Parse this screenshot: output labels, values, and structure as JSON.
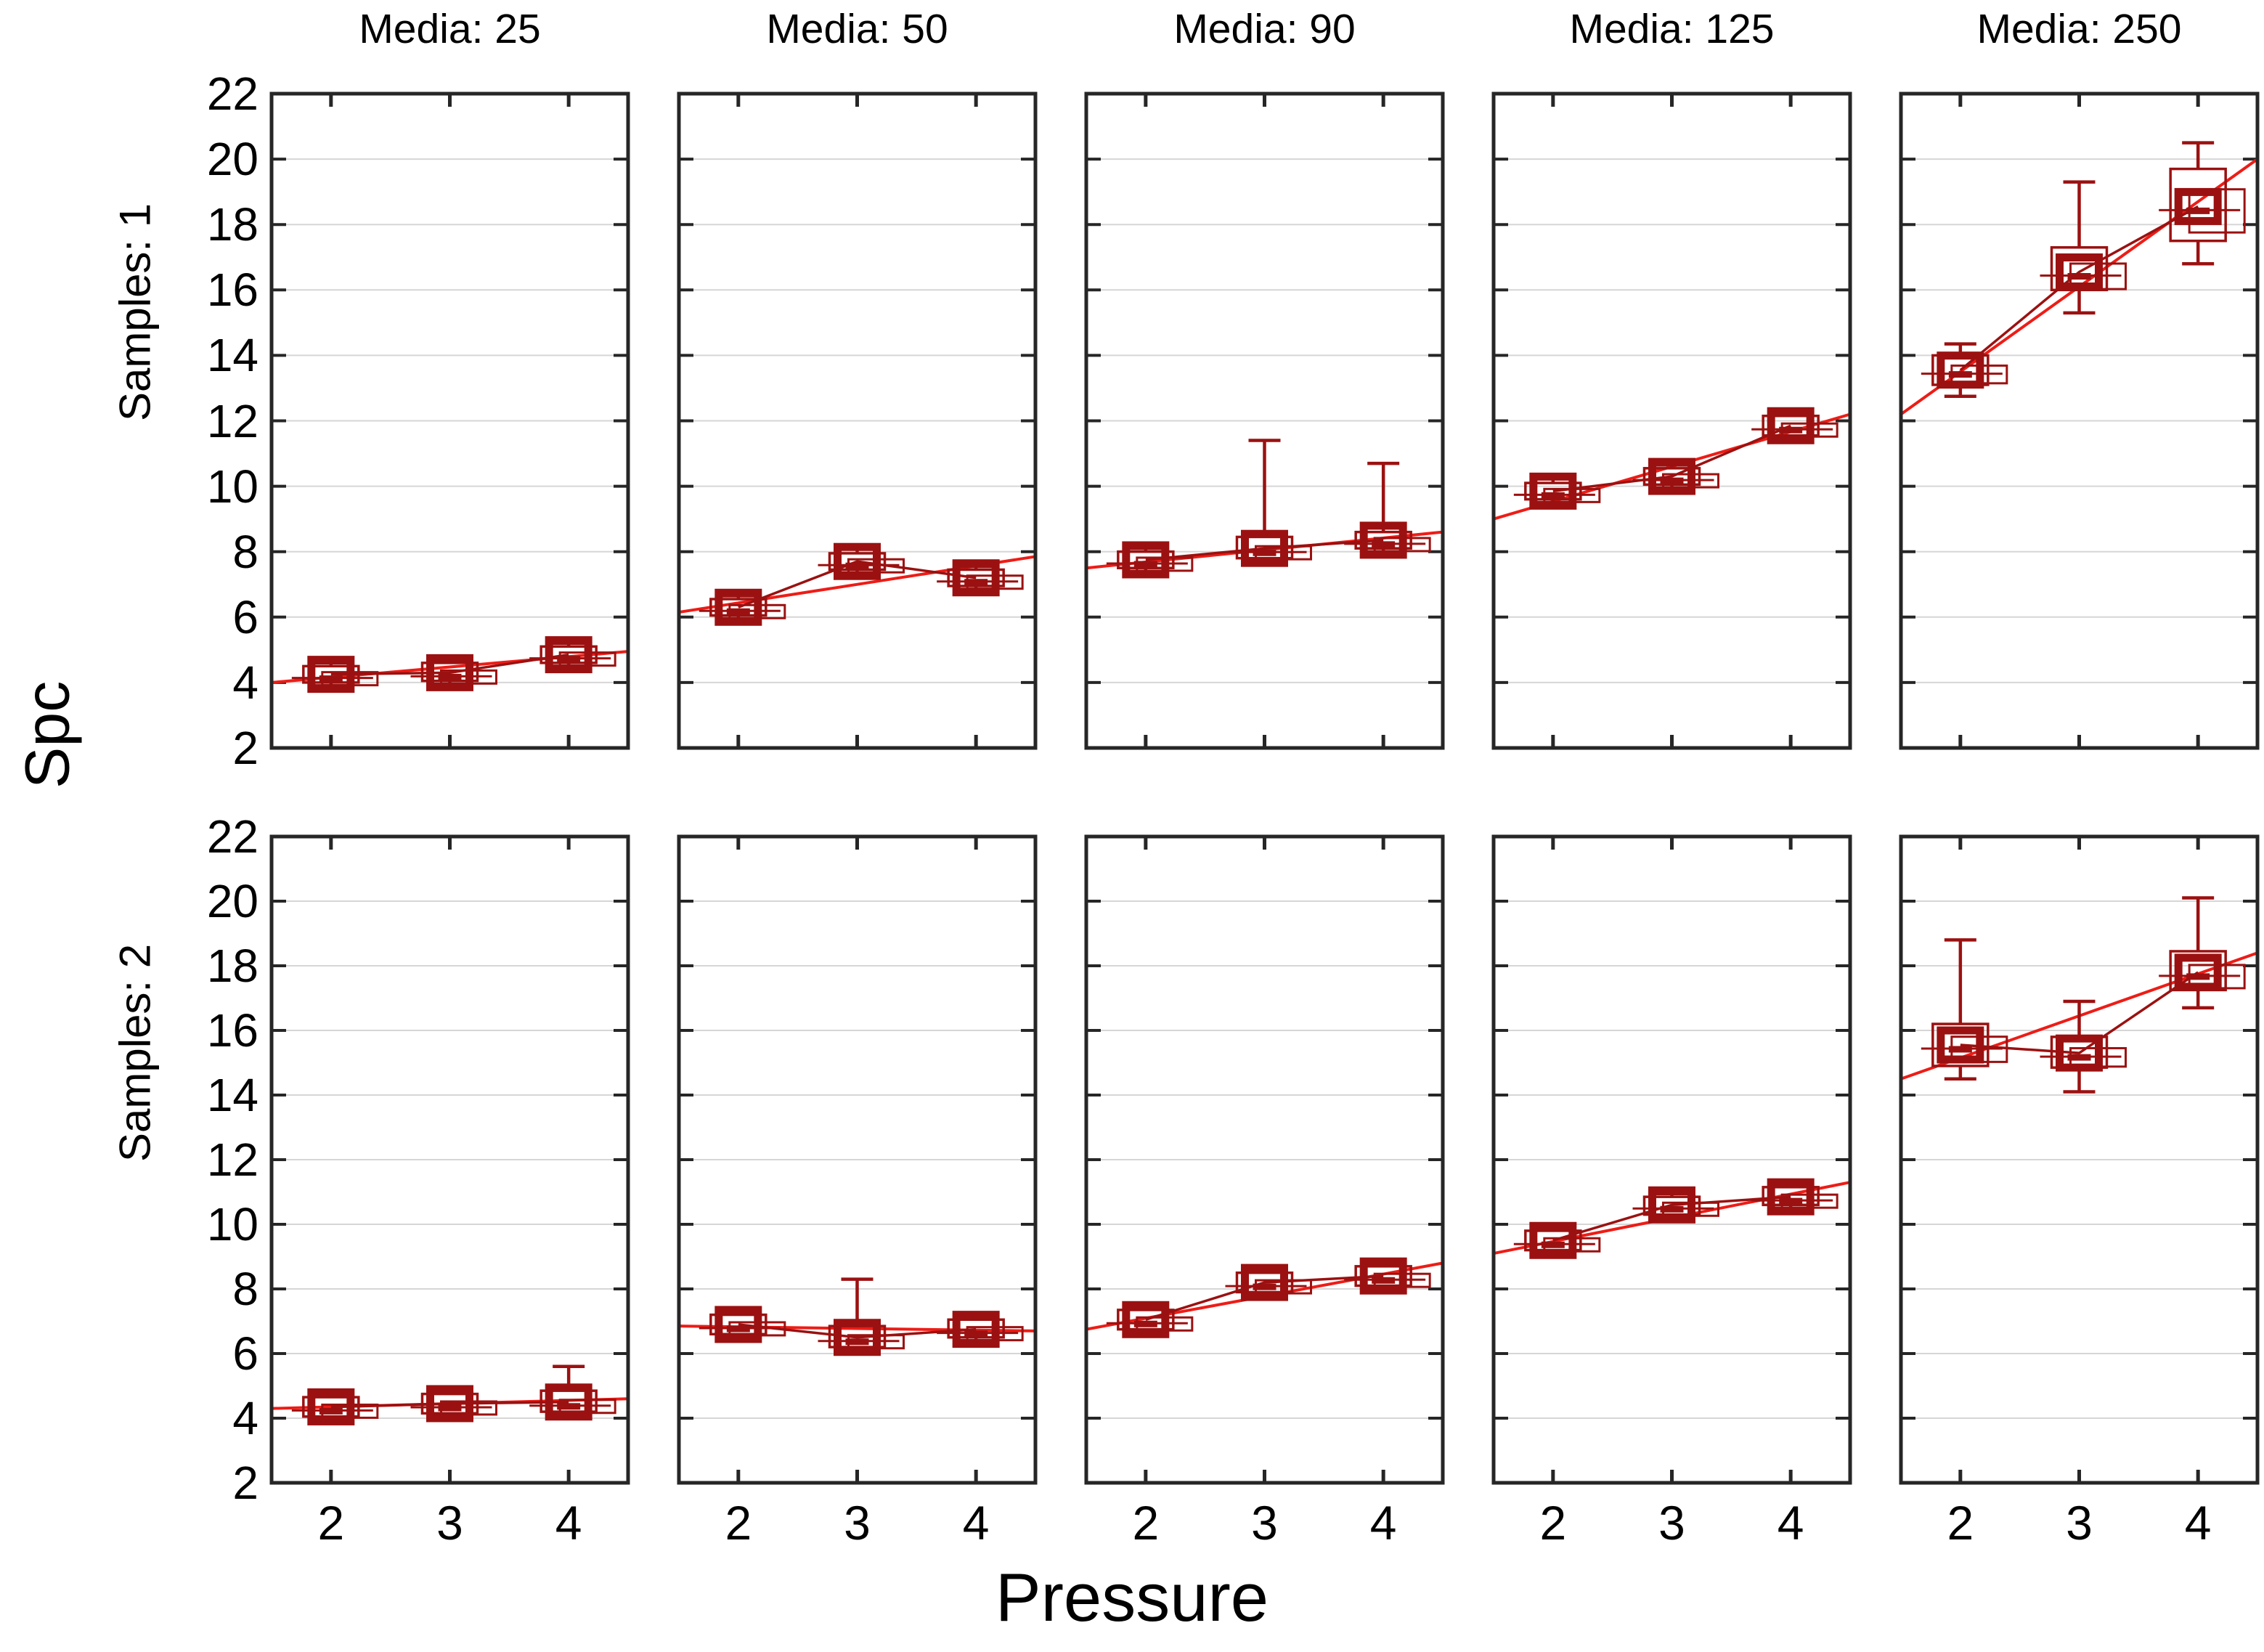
{
  "figure": {
    "title": "",
    "ylabel": "Spc",
    "xlabel": "Pressure",
    "row_label_1": "Samples: 1",
    "row_label_2": "Samples: 2",
    "col_title_1": "Media: 25",
    "col_title_2": "Media: 50",
    "col_title_3": "Media: 90",
    "col_title_4": "Media: 125",
    "col_title_5": "Media: 250"
  },
  "chart_data": {
    "type": "box",
    "layout": "trellis 2 rows (Samples) x 5 cols (Media), shared axes",
    "title": "",
    "xlabel": "Pressure",
    "ylabel": "Spc",
    "col_titles": [
      "Media: 25",
      "Media: 50",
      "Media: 90",
      "Media: 125",
      "Media: 250"
    ],
    "row_titles": [
      "Samples: 1",
      "Samples: 2"
    ],
    "x_ticks": [
      2,
      3,
      4
    ],
    "y_ticks": [
      22,
      20,
      18,
      16,
      14,
      12,
      10,
      8,
      6,
      4,
      2
    ],
    "xlim": [
      1.5,
      4.5
    ],
    "ylim": [
      2,
      22
    ],
    "grid": "horizontal only",
    "legend": "none",
    "colors": {
      "box": "#9b1111",
      "trend_line": "#ee1c16",
      "grid_line": "#d6d6d6",
      "frame": "#262626",
      "text": "#000000",
      "background": "#ffffff"
    },
    "panels": [
      {
        "row": "Samples: 1",
        "col": "Media: 25",
        "trend": [
          4.0,
          4.95
        ],
        "points": [
          {
            "x": 2,
            "mean": 4.25,
            "box": [
              4.0,
              4.5
            ],
            "whiskers": [
              3.9,
              4.6
            ]
          },
          {
            "x": 3,
            "mean": 4.3,
            "box": [
              4.05,
              4.6
            ],
            "whiskers": [
              3.95,
              4.65
            ]
          },
          {
            "x": 4,
            "mean": 4.85,
            "box": [
              4.6,
              5.1
            ],
            "whiskers": [
              4.5,
              5.2
            ]
          }
        ]
      },
      {
        "row": "Samples: 1",
        "col": "Media: 50",
        "trend": [
          6.15,
          7.85
        ],
        "points": [
          {
            "x": 2,
            "mean": 6.3,
            "box": [
              6.05,
              6.55
            ],
            "whiskers": [
              5.95,
              6.65
            ]
          },
          {
            "x": 3,
            "mean": 7.7,
            "box": [
              7.45,
              7.95
            ],
            "whiskers": [
              7.35,
              8.1
            ]
          },
          {
            "x": 4,
            "mean": 7.2,
            "box": [
              6.95,
              7.45
            ],
            "whiskers": [
              6.85,
              7.55
            ]
          }
        ]
      },
      {
        "row": "Samples: 1",
        "col": "Media: 90",
        "trend": [
          7.5,
          8.6
        ],
        "points": [
          {
            "x": 2,
            "mean": 7.75,
            "box": [
              7.5,
              8.0
            ],
            "whiskers": [
              7.4,
              8.1
            ]
          },
          {
            "x": 3,
            "mean": 8.1,
            "box": [
              7.8,
              8.45
            ],
            "whiskers": [
              7.7,
              11.4
            ]
          },
          {
            "x": 4,
            "mean": 8.35,
            "box": [
              8.1,
              8.6
            ],
            "whiskers": [
              8.0,
              10.7
            ]
          }
        ]
      },
      {
        "row": "Samples: 1",
        "col": "Media: 125",
        "trend": [
          9.0,
          12.2
        ],
        "points": [
          {
            "x": 2,
            "mean": 9.85,
            "box": [
              9.6,
              10.1
            ],
            "whiskers": [
              9.5,
              10.35
            ]
          },
          {
            "x": 3,
            "mean": 10.3,
            "box": [
              10.05,
              10.55
            ],
            "whiskers": [
              9.95,
              10.65
            ]
          },
          {
            "x": 4,
            "mean": 11.85,
            "box": [
              11.55,
              12.15
            ],
            "whiskers": [
              11.45,
              12.25
            ]
          }
        ]
      },
      {
        "row": "Samples: 1",
        "col": "Media: 250",
        "trend": [
          12.2,
          20.0
        ],
        "points": [
          {
            "x": 2,
            "mean": 13.55,
            "box": [
              13.1,
              14.0
            ],
            "whiskers": [
              12.75,
              14.35
            ]
          },
          {
            "x": 3,
            "mean": 16.55,
            "box": [
              16.0,
              17.3
            ],
            "whiskers": [
              15.3,
              19.3
            ]
          },
          {
            "x": 4,
            "mean": 18.55,
            "box": [
              17.5,
              19.7
            ],
            "whiskers": [
              16.8,
              20.5
            ]
          }
        ]
      },
      {
        "row": "Samples: 2",
        "col": "Media: 25",
        "trend": [
          4.3,
          4.6
        ],
        "points": [
          {
            "x": 2,
            "mean": 4.35,
            "box": [
              4.05,
              4.65
            ],
            "whiskers": [
              3.95,
              4.7
            ]
          },
          {
            "x": 3,
            "mean": 4.45,
            "box": [
              4.15,
              4.75
            ],
            "whiskers": [
              4.05,
              4.8
            ]
          },
          {
            "x": 4,
            "mean": 4.5,
            "box": [
              4.2,
              4.85
            ],
            "whiskers": [
              4.1,
              5.6
            ]
          }
        ]
      },
      {
        "row": "Samples: 2",
        "col": "Media: 50",
        "trend": [
          6.85,
          6.7
        ],
        "points": [
          {
            "x": 2,
            "mean": 6.9,
            "box": [
              6.6,
              7.2
            ],
            "whiskers": [
              6.5,
              7.3
            ]
          },
          {
            "x": 3,
            "mean": 6.5,
            "box": [
              6.2,
              6.85
            ],
            "whiskers": [
              6.1,
              8.3
            ]
          },
          {
            "x": 4,
            "mean": 6.75,
            "box": [
              6.5,
              7.05
            ],
            "whiskers": [
              6.4,
              7.15
            ]
          }
        ]
      },
      {
        "row": "Samples: 2",
        "col": "Media: 90",
        "trend": [
          6.75,
          8.8
        ],
        "points": [
          {
            "x": 2,
            "mean": 7.05,
            "box": [
              6.75,
              7.35
            ],
            "whiskers": [
              6.65,
              7.45
            ]
          },
          {
            "x": 3,
            "mean": 8.2,
            "box": [
              7.9,
              8.5
            ],
            "whiskers": [
              7.8,
              8.6
            ]
          },
          {
            "x": 4,
            "mean": 8.4,
            "box": [
              8.1,
              8.7
            ],
            "whiskers": [
              8.0,
              8.8
            ]
          }
        ]
      },
      {
        "row": "Samples: 2",
        "col": "Media: 125",
        "trend": [
          9.1,
          11.3
        ],
        "points": [
          {
            "x": 2,
            "mean": 9.5,
            "box": [
              9.2,
              9.8
            ],
            "whiskers": [
              9.1,
              9.9
            ]
          },
          {
            "x": 3,
            "mean": 10.6,
            "box": [
              10.3,
              10.85
            ],
            "whiskers": [
              10.2,
              10.95
            ]
          },
          {
            "x": 4,
            "mean": 10.85,
            "box": [
              10.6,
              11.15
            ],
            "whiskers": [
              10.5,
              11.25
            ]
          }
        ]
      },
      {
        "row": "Samples: 2",
        "col": "Media: 250",
        "trend": [
          14.5,
          18.4
        ],
        "points": [
          {
            "x": 2,
            "mean": 15.55,
            "box": [
              14.9,
              16.2
            ],
            "whiskers": [
              14.5,
              18.8
            ]
          },
          {
            "x": 3,
            "mean": 15.3,
            "box": [
              14.85,
              15.8
            ],
            "whiskers": [
              14.1,
              16.9
            ]
          },
          {
            "x": 4,
            "mean": 17.8,
            "box": [
              17.25,
              18.45
            ],
            "whiskers": [
              16.7,
              20.1
            ]
          }
        ]
      }
    ]
  }
}
